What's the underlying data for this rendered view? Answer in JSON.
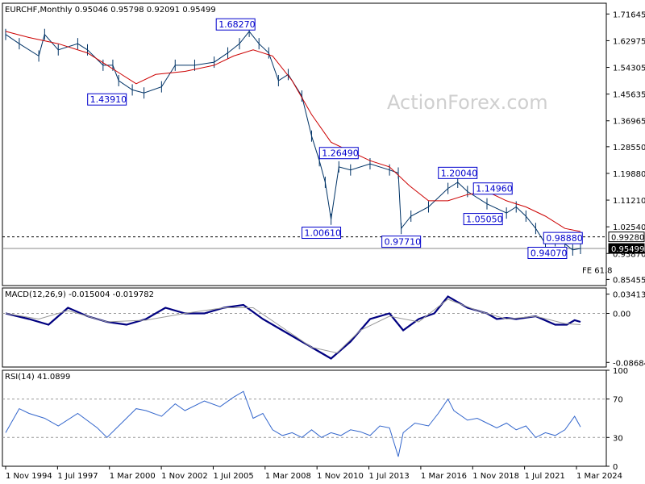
{
  "header": {
    "main": "EURCHF,Monthly  0.95046 0.95798 0.92091 0.95499",
    "macd": "MACD(12,26,9) -0.015004 -0.019782",
    "rsi": "RSI(14) 41.0899"
  },
  "watermark": "ActionForex.com",
  "chart_data": [
    {
      "type": "candlestick",
      "title": "EURCHF,Monthly",
      "ohlc_last": {
        "open": 0.95046,
        "high": 0.95798,
        "low": 0.92091,
        "close": 0.95499
      },
      "y_ticks": [
        "1.71645",
        "1.62975",
        "1.54305",
        "1.45635",
        "1.36965",
        "1.28550",
        "1.19880",
        "1.11210",
        "1.02540",
        "0.93870",
        "0.85455"
      ],
      "ylim": [
        0.8346,
        1.7514
      ],
      "series": [
        {
          "name": "",
          "x": [
            1994.8,
            1995.5,
            1996.5,
            1996.8,
            1997.5,
            1998.5,
            1999.0,
            1999.8,
            2000.3,
            2000.6,
            2001.3,
            2001.9,
            2002.8,
            2003.5,
            2004.5,
            2005.5,
            2006.2,
            2006.8,
            2007.3,
            2007.8,
            2008.3,
            2008.8,
            2009.3,
            2010.0,
            2010.5,
            2010.9,
            2011.2,
            2011.5,
            2011.9,
            2012.5,
            2013.5,
            2014.5,
            2014.95,
            2015.1,
            2015.6,
            2016.5,
            2017.5,
            2018.0,
            2018.5,
            2019.5,
            2020.5,
            2021.0,
            2021.5,
            2022.0,
            2022.5,
            2023.0,
            2023.5,
            2023.9,
            2024.3
          ],
          "y": [
            1.65,
            1.62,
            1.58,
            1.65,
            1.6,
            1.62,
            1.6,
            1.55,
            1.55,
            1.5,
            1.47,
            1.46,
            1.48,
            1.55,
            1.55,
            1.56,
            1.59,
            1.62,
            1.66,
            1.62,
            1.59,
            1.5,
            1.52,
            1.45,
            1.32,
            1.24,
            1.17,
            1.05,
            1.22,
            1.21,
            1.23,
            1.21,
            1.2,
            1.02,
            1.06,
            1.09,
            1.15,
            1.17,
            1.14,
            1.1,
            1.07,
            1.09,
            1.06,
            1.02,
            0.97,
            0.98,
            0.97,
            0.95,
            0.955
          ],
          "color": "#003366"
        },
        {
          "name": "",
          "x": [
            1994.8,
            1996.0,
            1997.5,
            1999.0,
            2000.5,
            2001.5,
            2002.5,
            2004.0,
            2005.5,
            2006.5,
            2007.5,
            2008.5,
            2009.5,
            2010.5,
            2011.5,
            2012.5,
            2013.5,
            2014.5,
            2015.5,
            2016.5,
            2017.5,
            2018.5,
            2019.5,
            2020.5,
            2021.5,
            2022.5,
            2023.5,
            2024.3
          ],
          "y": [
            1.66,
            1.64,
            1.62,
            1.59,
            1.53,
            1.49,
            1.52,
            1.53,
            1.55,
            1.58,
            1.6,
            1.58,
            1.5,
            1.39,
            1.3,
            1.27,
            1.24,
            1.22,
            1.16,
            1.11,
            1.11,
            1.13,
            1.14,
            1.11,
            1.09,
            1.06,
            1.02,
            1.01
          ],
          "color": "#cc0000"
        }
      ],
      "annotations": [
        {
          "text": "1.68270",
          "x": 2006.6,
          "y": 1.6827
        },
        {
          "text": "1.43910",
          "x": 2000.0,
          "y": 1.4391
        },
        {
          "text": "1.26490",
          "x": 2011.9,
          "y": 1.2649
        },
        {
          "text": "1.20040",
          "x": 2018.0,
          "y": 1.2004
        },
        {
          "text": "1.14960",
          "x": 2019.8,
          "y": 1.1496
        },
        {
          "text": "1.05050",
          "x": 2019.3,
          "y": 1.0505
        },
        {
          "text": "1.00610",
          "x": 2011.0,
          "y": 1.0061
        },
        {
          "text": "0.97710",
          "x": 2015.1,
          "y": 0.9771
        },
        {
          "text": "0.98880",
          "x": 2023.4,
          "y": 0.9888
        },
        {
          "text": "0.94070",
          "x": 2022.6,
          "y": 0.9407
        }
      ],
      "levels": [
        {
          "value": 0.9928,
          "label": "0.99280",
          "style": "dashed"
        },
        {
          "value": 0.95499,
          "label": "0.95499",
          "style": "solid"
        }
      ],
      "fe_label": "FE 61.8"
    },
    {
      "type": "line",
      "title": "MACD(12,26,9)",
      "y_ticks": [
        "0.034137",
        "0.00",
        "-0.086849"
      ],
      "ylim": [
        -0.095,
        0.045
      ],
      "series": [
        {
          "name": "",
          "x": [
            1994.8,
            1996.0,
            1997.0,
            1998.0,
            1999.0,
            2000.0,
            2001.0,
            2002.0,
            2003.0,
            2004.0,
            2005.0,
            2006.0,
            2007.0,
            2008.0,
            2009.0,
            2010.0,
            2011.0,
            2011.5,
            2012.5,
            2013.5,
            2014.5,
            2015.2,
            2016.0,
            2016.8,
            2017.5,
            2018.5,
            2019.5,
            2020.0,
            2020.5,
            2021.0,
            2022.0,
            2023.0,
            2023.6,
            2024.0,
            2024.3
          ],
          "y": [
            0.0,
            -0.01,
            -0.02,
            0.01,
            -0.005,
            -0.015,
            -0.02,
            -0.01,
            0.01,
            0.0,
            0.0,
            0.01,
            0.015,
            -0.01,
            -0.03,
            -0.05,
            -0.07,
            -0.08,
            -0.05,
            -0.01,
            0.0,
            -0.03,
            -0.01,
            0.0,
            0.03,
            0.01,
            0.0,
            -0.01,
            -0.008,
            -0.01,
            -0.005,
            -0.02,
            -0.02,
            -0.012,
            -0.015
          ],
          "color": "#000080"
        },
        {
          "name": "",
          "x": [
            1994.8,
            1996.5,
            1998.0,
            2000.0,
            2002.0,
            2004.0,
            2006.0,
            2007.5,
            2009.0,
            2010.5,
            2011.8,
            2013.0,
            2014.5,
            2016.0,
            2017.5,
            2019.0,
            2020.5,
            2022.0,
            2023.5,
            2024.3
          ],
          "y": [
            0.0,
            -0.01,
            0.005,
            -0.015,
            -0.012,
            0.0,
            0.01,
            0.01,
            -0.025,
            -0.06,
            -0.07,
            -0.03,
            -0.005,
            -0.015,
            0.025,
            0.005,
            -0.01,
            -0.005,
            -0.018,
            -0.02
          ],
          "color": "#999999"
        }
      ]
    },
    {
      "type": "line",
      "title": "RSI(14)",
      "y_ticks": [
        "100",
        "70",
        "30",
        "0"
      ],
      "ylim": [
        0,
        100
      ],
      "series": [
        {
          "name": "",
          "x": [
            1994.8,
            1995.5,
            1996.0,
            1996.8,
            1997.5,
            1998.5,
            1999.5,
            2000.0,
            2000.5,
            2001.5,
            2002.0,
            2002.8,
            2003.5,
            2004.0,
            2005.0,
            2005.8,
            2006.5,
            2007.0,
            2007.5,
            2008.0,
            2008.5,
            2009.0,
            2009.5,
            2010.0,
            2010.5,
            2011.0,
            2011.5,
            2012.0,
            2012.5,
            2013.0,
            2013.5,
            2014.0,
            2014.5,
            2014.95,
            2015.2,
            2015.8,
            2016.5,
            2017.0,
            2017.5,
            2017.8,
            2018.5,
            2019.0,
            2019.5,
            2020.0,
            2020.5,
            2021.0,
            2021.5,
            2022.0,
            2022.5,
            2023.0,
            2023.5,
            2024.0,
            2024.3
          ],
          "y": [
            35,
            60,
            55,
            50,
            42,
            55,
            40,
            30,
            40,
            60,
            58,
            52,
            65,
            58,
            68,
            62,
            72,
            78,
            50,
            55,
            38,
            32,
            35,
            30,
            38,
            30,
            35,
            32,
            38,
            36,
            32,
            42,
            40,
            10,
            35,
            45,
            42,
            55,
            70,
            58,
            48,
            50,
            45,
            40,
            45,
            38,
            42,
            30,
            35,
            32,
            38,
            52,
            41
          ],
          "color": "#3366cc"
        }
      ]
    }
  ],
  "x_ticks": [
    "1 Nov 1994",
    "1 Jul 1997",
    "1 Mar 2000",
    "1 Nov 2002",
    "1 Jul 2005",
    "1 Mar 2008",
    "1 Nov 2010",
    "1 Jul 2013",
    "1 Mar 2016",
    "1 Nov 2018",
    "1 Jul 2021",
    "1 Mar 2024"
  ]
}
